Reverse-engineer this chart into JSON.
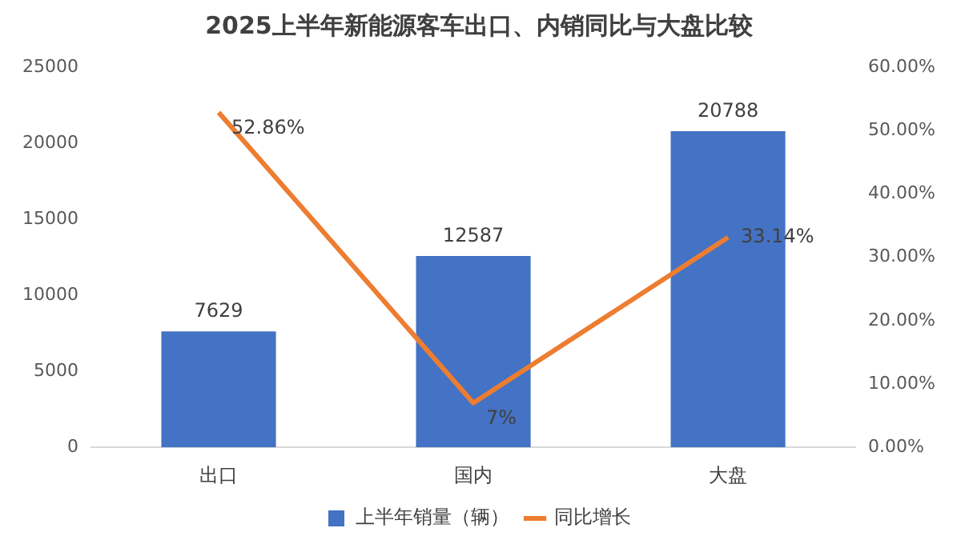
{
  "chart_data": {
    "type": "bar",
    "title": "2025上半年新能源客车出口、内销同比与大盘比较",
    "categories": [
      "出口",
      "国内",
      "大盘"
    ],
    "series": [
      {
        "name": "上半年销量（辆）",
        "color": "#4472c4",
        "values": [
          7629,
          12587,
          20788
        ],
        "value_labels": [
          "7629",
          "12587",
          "20788"
        ]
      },
      {
        "name": "同比增长",
        "type": "line",
        "axis": "y2",
        "color": "#ed7d31",
        "values": [
          52.86,
          7,
          33.14
        ],
        "value_labels": [
          "52.86%",
          "7%",
          "33.14%"
        ]
      }
    ],
    "ylim": [
      0,
      25000
    ],
    "yticks": [
      0,
      5000,
      10000,
      15000,
      20000,
      25000
    ],
    "y2lim": [
      0,
      60
    ],
    "y2ticks": [
      {
        "value": 0,
        "label": "0.00%"
      },
      {
        "value": 10,
        "label": "10.00%"
      },
      {
        "value": 20,
        "label": "20.00%"
      },
      {
        "value": 30,
        "label": "30.00%"
      },
      {
        "value": 40,
        "label": "40.00%"
      },
      {
        "value": 50,
        "label": "50.00%"
      },
      {
        "value": 60,
        "label": "60.00%"
      }
    ],
    "grid": false,
    "legend": "bottom",
    "marker": "none"
  }
}
